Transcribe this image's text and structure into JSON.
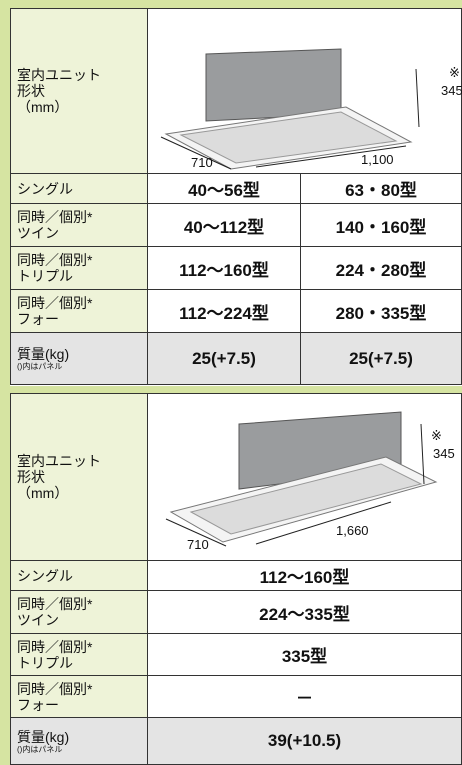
{
  "tables": [
    {
      "image_row": {
        "label": [
          "室内ユニット",
          "形状",
          "（mm）"
        ],
        "dims": {
          "width": "710",
          "depth": "1,100",
          "height_note": "※",
          "height": "345"
        }
      },
      "rows": [
        {
          "label": [
            "シングル"
          ],
          "values": [
            "40～56型",
            "63・80型"
          ]
        },
        {
          "label": [
            "同時／個別*",
            "ツイン"
          ],
          "values": [
            "40～112型",
            "140・160型"
          ]
        },
        {
          "label": [
            "同時／個別*",
            "トリプル"
          ],
          "values": [
            "112～160型",
            "224・280型"
          ]
        },
        {
          "label": [
            "同時／個別*",
            "フォー"
          ],
          "values": [
            "112～224型",
            "280・335型"
          ]
        }
      ],
      "mass_row": {
        "label": "質量(kg)",
        "note": "()内はパネル",
        "values": [
          "25(+7.5)",
          "25(+7.5)"
        ]
      }
    },
    {
      "image_row": {
        "label": [
          "室内ユニット",
          "形状",
          "（mm）"
        ],
        "dims": {
          "width": "710",
          "depth": "1,660",
          "height_note": "※",
          "height": "345"
        }
      },
      "rows": [
        {
          "label": [
            "シングル"
          ],
          "values": [
            "112～160型"
          ]
        },
        {
          "label": [
            "同時／個別*",
            "ツイン"
          ],
          "values": [
            "224～335型"
          ]
        },
        {
          "label": [
            "同時／個別*",
            "トリプル"
          ],
          "values": [
            "335型"
          ]
        },
        {
          "label": [
            "同時／個別*",
            "フォー"
          ],
          "values": [
            "－"
          ]
        }
      ],
      "mass_row": {
        "label": "質量(kg)",
        "note": "()内はパネル",
        "values": [
          "39(+10.5)"
        ]
      }
    }
  ]
}
